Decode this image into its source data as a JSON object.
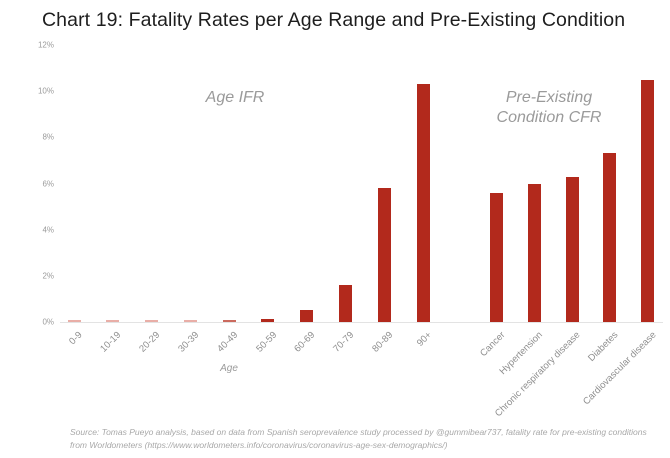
{
  "chart_data": {
    "type": "bar",
    "title": "Chart 19: Fatality Rates per Age Range and Pre-Existing Condition",
    "ylim": [
      0,
      12
    ],
    "y_tick_labels": [
      "0%",
      "2%",
      "4%",
      "6%",
      "8%",
      "10%",
      "12%"
    ],
    "y_unit": "%",
    "grid": false,
    "legend": "none",
    "bar_colors": {
      "default": "#b2291c",
      "medium": "#cb6a5e",
      "faint": "#e9aea7"
    },
    "groups": [
      {
        "label": "Age IFR",
        "axis_label": "Age",
        "categories": [
          "0-9",
          "10-19",
          "20-29",
          "30-39",
          "40-49",
          "50-59",
          "60-69",
          "70-79",
          "80-89",
          "90+"
        ],
        "values": [
          0.01,
          0.01,
          0.01,
          0.02,
          0.06,
          0.15,
          0.5,
          1.6,
          5.8,
          10.3
        ]
      },
      {
        "label": "Pre-Existing\nCondition CFR",
        "axis_label": "",
        "categories": [
          "Cancer",
          "Hypertension",
          "Chronic respiratory disease",
          "Diabetes",
          "Cardiovascular disease"
        ],
        "values": [
          5.6,
          6.0,
          6.3,
          7.3,
          10.5
        ]
      }
    ]
  },
  "source_note": "Source: Tomas Pueyo analysis, based on data from Spanish seroprevalence study processed by @gummibear737, fatality rate for pre-existing conditions from Worldometers (https://www.worldometers.info/coronavirus/coronavirus-age-sex-demographics/)"
}
